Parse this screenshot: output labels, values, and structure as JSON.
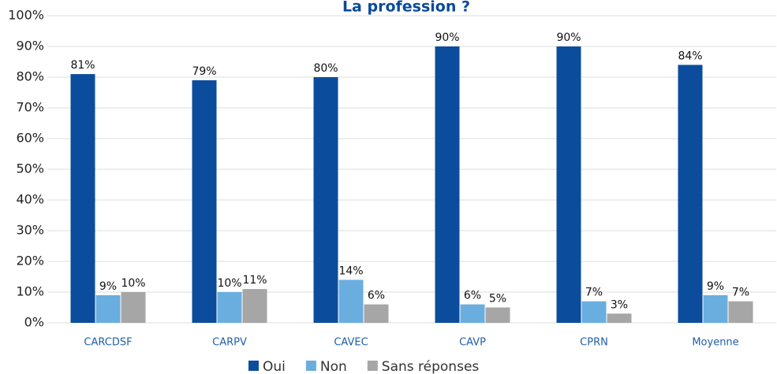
{
  "chart_data": {
    "type": "bar",
    "title": "La profession ?",
    "categories": [
      "CARCDSF",
      "CARPV",
      "CAVEC",
      "CAVP",
      "CPRN",
      "Moyenne"
    ],
    "series": [
      {
        "name": "Oui",
        "color": "#0b4d9c",
        "values": [
          81,
          79,
          80,
          90,
          90,
          84
        ],
        "value_labels": [
          "81%",
          "79%",
          "80%",
          "90%",
          "90%",
          "84%"
        ]
      },
      {
        "name": "Non",
        "color": "#6aaee0",
        "values": [
          9,
          10,
          14,
          6,
          7,
          9
        ],
        "value_labels": [
          "9%",
          "10%",
          "14%",
          "6%",
          "7%",
          "9%"
        ]
      },
      {
        "name": "Sans réponses",
        "color": "#a6a6a6",
        "values": [
          10,
          11,
          6,
          5,
          3,
          7
        ],
        "value_labels": [
          "10%",
          "11%",
          "6%",
          "5%",
          "3%",
          "7%"
        ]
      }
    ],
    "ylim": [
      0,
      100
    ],
    "yticks": [
      {
        "value": 0,
        "label": "0%"
      },
      {
        "value": 10,
        "label": "10%"
      },
      {
        "value": 20,
        "label": "20%"
      },
      {
        "value": 30,
        "label": "30%"
      },
      {
        "value": 40,
        "label": "40%"
      },
      {
        "value": 50,
        "label": "50%"
      },
      {
        "value": 60,
        "label": "60%"
      },
      {
        "value": 70,
        "label": "70%"
      },
      {
        "value": 80,
        "label": "80%"
      },
      {
        "value": 90,
        "label": "90%"
      },
      {
        "value": 100,
        "label": "100%"
      }
    ],
    "grid": true,
    "legend": "bottom"
  }
}
